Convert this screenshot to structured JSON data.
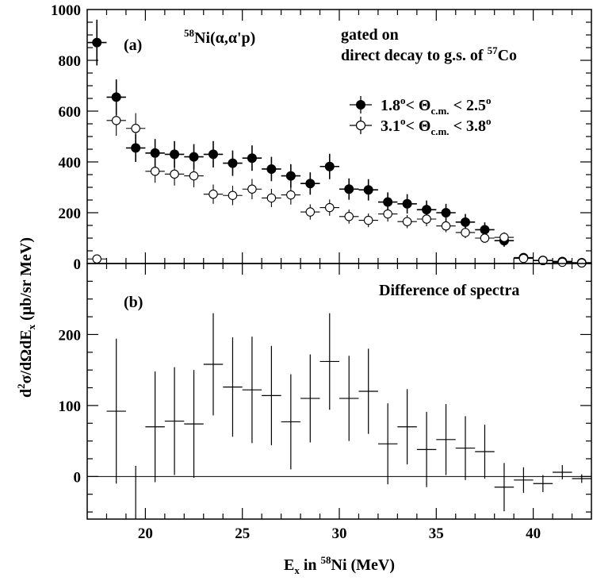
{
  "chart_data": [
    {
      "type": "scatter",
      "panel": "(a)",
      "reaction": {
        "prefix": "58",
        "main": "Ni(α,α'p)"
      },
      "note": {
        "line1": "gated on",
        "line2": "direct decay to g.s. of ",
        "line2_sup": "57",
        "line2_end": "Co"
      },
      "ylabel": {
        "main": "d",
        "sup": "2",
        "rest": "σ/dΩdE",
        "sub": "x",
        "units": " (μb/sr MeV)"
      },
      "xlim": [
        17,
        43
      ],
      "ylim": [
        0,
        1000
      ],
      "yticks": [
        0,
        200,
        400,
        600,
        800,
        1000
      ],
      "legend_placement": "top-right",
      "series": [
        {
          "name": {
            "pre": "1.8",
            "deg": "o",
            "mid": "< Θ",
            "sub": "c.m.",
            "post": " < 2.5",
            "deg2": "o"
          },
          "marker": "filled-circle",
          "x": [
            17.5,
            18.5,
            19.5,
            20.5,
            21.5,
            22.5,
            23.5,
            24.5,
            25.5,
            26.5,
            27.5,
            28.5,
            29.5,
            30.5,
            31.5,
            32.5,
            33.5,
            34.5,
            35.5,
            36.5,
            37.5,
            38.5,
            39.5,
            40.5,
            41.5,
            42.5
          ],
          "y": [
            870,
            655,
            455,
            435,
            430,
            420,
            430,
            395,
            415,
            372,
            345,
            315,
            382,
            293,
            290,
            242,
            235,
            212,
            200,
            163,
            133,
            90,
            23,
            12,
            8,
            3
          ],
          "err": [
            90,
            70,
            55,
            55,
            52,
            50,
            52,
            50,
            50,
            48,
            46,
            44,
            50,
            42,
            42,
            38,
            38,
            36,
            35,
            32,
            29,
            24,
            10,
            7,
            5,
            3
          ]
        },
        {
          "name": {
            "pre": "3.1",
            "deg": "o",
            "mid": "< Θ",
            "sub": "c.m.",
            "post": " < 3.8",
            "deg2": "o"
          },
          "marker": "open-circle",
          "x": [
            17.5,
            18.5,
            19.5,
            20.5,
            21.5,
            22.5,
            23.5,
            24.5,
            25.5,
            26.5,
            27.5,
            28.5,
            29.5,
            30.5,
            31.5,
            32.5,
            33.5,
            34.5,
            35.5,
            36.5,
            37.5,
            38.5,
            39.5,
            40.5,
            41.5,
            42.5
          ],
          "y": [
            18,
            563,
            532,
            363,
            352,
            345,
            273,
            268,
            293,
            258,
            270,
            203,
            220,
            185,
            170,
            195,
            165,
            175,
            148,
            122,
            100,
            103,
            20,
            12,
            5,
            2
          ],
          "err": [
            5,
            60,
            60,
            45,
            45,
            45,
            38,
            38,
            40,
            36,
            38,
            30,
            32,
            28,
            27,
            30,
            26,
            28,
            25,
            22,
            18,
            20,
            8,
            6,
            4,
            2
          ]
        }
      ]
    },
    {
      "type": "scatter",
      "panel": "(b)",
      "title": "Difference of spectra",
      "xlabel": {
        "pre": "E",
        "sub": "x",
        "mid": " in ",
        "sup": "58",
        "post": "Ni (MeV)"
      },
      "xlim": [
        17,
        43
      ],
      "ylim": [
        -60,
        300
      ],
      "xticks": [
        20,
        25,
        30,
        35,
        40
      ],
      "yticks": [
        0,
        100,
        200
      ],
      "series": [
        {
          "marker": "none",
          "x": [
            18.5,
            19.5,
            20.5,
            21.5,
            22.5,
            23.5,
            24.5,
            25.5,
            26.5,
            27.5,
            28.5,
            29.5,
            30.5,
            31.5,
            32.5,
            33.5,
            34.5,
            35.5,
            36.5,
            37.5,
            38.5,
            39.5,
            40.5,
            41.5,
            42.5
          ],
          "y": [
            92,
            -80,
            70,
            78,
            74,
            158,
            126,
            122,
            114,
            77,
            110,
            162,
            110,
            120,
            46,
            70,
            38,
            52,
            40,
            35,
            -15,
            -5,
            -10,
            6,
            -3
          ],
          "err": [
            102,
            95,
            78,
            76,
            76,
            72,
            70,
            75,
            70,
            67,
            62,
            68,
            60,
            60,
            57,
            53,
            53,
            50,
            45,
            38,
            34,
            18,
            12,
            10,
            6
          ]
        }
      ]
    }
  ]
}
